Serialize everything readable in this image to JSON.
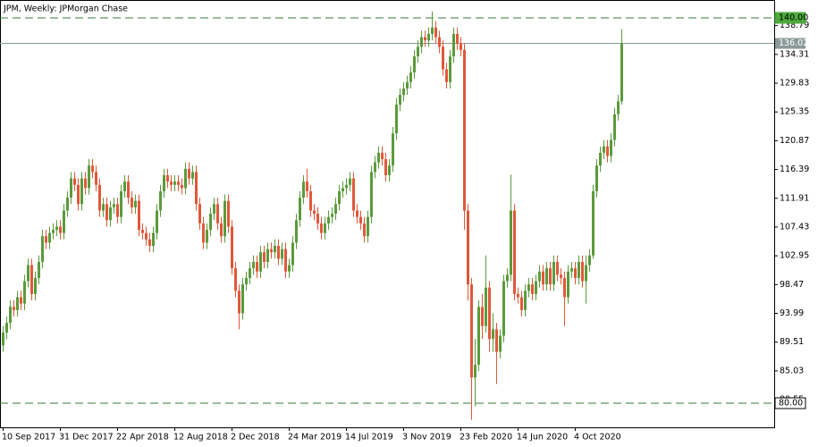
{
  "chart_data": {
    "type": "candlestick",
    "title": "JPM, Weekly:  JPMorgan Chase",
    "categories": [
      "10 Sep 2017",
      null,
      null,
      null,
      null,
      null,
      null,
      null,
      null,
      null,
      null,
      null,
      null,
      null,
      null,
      null,
      "31 Dec 2017",
      null,
      null,
      null,
      null,
      null,
      null,
      null,
      null,
      null,
      null,
      null,
      null,
      null,
      null,
      null,
      "22 Apr 2018",
      null,
      null,
      null,
      null,
      null,
      null,
      null,
      null,
      null,
      null,
      null,
      null,
      null,
      null,
      null,
      "12 Aug 2018",
      null,
      null,
      null,
      null,
      null,
      null,
      null,
      null,
      null,
      null,
      null,
      null,
      null,
      null,
      null,
      "2 Dec 2018",
      null,
      null,
      null,
      null,
      null,
      null,
      null,
      null,
      null,
      null,
      null,
      null,
      null,
      null,
      null,
      "24 Mar 2019",
      null,
      null,
      null,
      null,
      null,
      null,
      null,
      null,
      null,
      null,
      null,
      null,
      null,
      null,
      null,
      "14 Jul 2019",
      null,
      null,
      null,
      null,
      null,
      null,
      null,
      null,
      null,
      null,
      null,
      null,
      null,
      null,
      null,
      "3 Nov 2019",
      null,
      null,
      null,
      null,
      null,
      null,
      null,
      null,
      null,
      null,
      null,
      null,
      null,
      null,
      null,
      "23 Feb 2020",
      null,
      null,
      null,
      null,
      null,
      null,
      null,
      null,
      null,
      null,
      null,
      null,
      null,
      null,
      null,
      "14 Jun 2020",
      null,
      null,
      null,
      null,
      null,
      null,
      null,
      null,
      null,
      null,
      null,
      null,
      null,
      null,
      null,
      "4 Oct 2020",
      null,
      null,
      null,
      null,
      null,
      null,
      null,
      null,
      null,
      null,
      null,
      null,
      null
    ],
    "open": [
      89,
      91,
      92.5,
      95,
      94.5,
      96.5,
      95.5,
      99,
      101.5,
      97,
      99.5,
      102,
      106,
      105,
      106.5,
      107,
      107.5,
      106.5,
      110,
      112,
      115,
      114,
      111,
      115,
      113.5,
      117,
      116,
      114,
      110,
      111,
      108.5,
      110.5,
      111,
      109,
      113,
      114.5,
      112,
      110.5,
      111.5,
      107,
      106.5,
      105.5,
      104.5,
      106.5,
      110,
      113,
      115.5,
      114.5,
      114,
      114.5,
      114,
      113.5,
      116.5,
      115,
      116,
      111,
      108,
      105,
      107,
      109.5,
      111,
      108,
      106,
      111.5,
      107.5,
      101,
      97.5,
      94,
      98.5,
      99.5,
      101,
      102,
      100.5,
      103.5,
      102,
      104,
      103.5,
      104.5,
      102.5,
      104,
      100.5,
      101.5,
      105,
      108.5,
      112,
      114.5,
      113,
      110,
      109.5,
      108,
      106.5,
      108,
      109,
      109.5,
      111,
      113,
      113.5,
      114,
      115,
      110,
      109,
      108,
      106,
      109,
      116,
      117.5,
      119,
      118,
      115.5,
      117,
      122,
      126.5,
      128,
      129,
      130,
      131.5,
      134,
      135.5,
      137,
      136.5,
      137.5,
      138.5,
      137,
      135.5,
      132,
      130,
      134,
      137.5,
      136,
      135,
      110,
      98.5,
      84,
      86,
      95,
      92,
      98,
      90,
      91.5,
      88,
      90.5,
      99,
      100,
      110,
      97,
      96.5,
      94.5,
      97.5,
      98.5,
      97,
      99,
      100.5,
      98.5,
      101,
      98.5,
      102,
      100,
      99.5,
      96.5,
      100.5,
      101,
      99.5,
      102,
      99,
      101.5,
      103,
      113,
      117,
      119,
      120,
      118.5,
      121,
      125,
      127
    ],
    "high": [
      92,
      93.5,
      96,
      96,
      97.5,
      97.5,
      100,
      102.5,
      102.5,
      100.5,
      103,
      107,
      107,
      107.5,
      108,
      108.5,
      108.5,
      111,
      113,
      116,
      116,
      115,
      116,
      116,
      118,
      118,
      117,
      115,
      112,
      112,
      111.5,
      112,
      112,
      114,
      115.5,
      115.5,
      113,
      112.5,
      112.5,
      108,
      107.5,
      106.5,
      107.5,
      111,
      114,
      116.5,
      116.5,
      115.5,
      115.5,
      115.5,
      115,
      117.5,
      117.5,
      117,
      117,
      112,
      109,
      108,
      110.5,
      112,
      112,
      109,
      112.5,
      112.5,
      108.5,
      102,
      98.5,
      99.5,
      100.5,
      102,
      103,
      103,
      104.5,
      104.5,
      105,
      105,
      105.5,
      105.5,
      105,
      105,
      102.5,
      106,
      109.5,
      113,
      115.5,
      116.5,
      114,
      111,
      110.5,
      109,
      109,
      110,
      110.5,
      112,
      114,
      114.5,
      115,
      116,
      116,
      111,
      110,
      109,
      110,
      117,
      118.5,
      120,
      120,
      119,
      118,
      123,
      127.5,
      129,
      130,
      131,
      132.5,
      135,
      136.5,
      138,
      138,
      138.5,
      141,
      139.5,
      138,
      136.5,
      133,
      135,
      138.5,
      138.5,
      137,
      136,
      111,
      99.5,
      90,
      96,
      97,
      103,
      99,
      94,
      92.5,
      91.5,
      100,
      101,
      115.6,
      111,
      98,
      97.5,
      98.5,
      99.5,
      99.5,
      100,
      101.5,
      101.5,
      102,
      102,
      103,
      103,
      101,
      100.5,
      101.5,
      102,
      102,
      103,
      103,
      103,
      104,
      114,
      118,
      120,
      121,
      121,
      122,
      126,
      128,
      138.2
    ],
    "low": [
      88,
      90,
      91.5,
      93.5,
      93.5,
      94.5,
      94.5,
      98,
      96,
      96,
      98.5,
      101,
      104,
      104,
      105.5,
      106,
      105.5,
      105.5,
      109,
      111,
      113,
      110,
      110,
      112.5,
      112.5,
      115,
      113,
      109,
      109,
      107.5,
      107.5,
      109.5,
      108,
      108,
      112,
      111,
      109.5,
      109.5,
      106,
      105.5,
      104.5,
      103.5,
      103.5,
      105.5,
      109,
      112,
      113.5,
      113,
      113,
      113,
      112.5,
      112.5,
      114,
      114,
      110,
      107,
      104,
      104,
      106,
      108.5,
      107,
      105,
      105,
      106.5,
      100,
      96.5,
      91.5,
      93,
      97.5,
      98.5,
      100,
      99.5,
      99.5,
      101,
      101,
      102.5,
      102.5,
      101.5,
      101.5,
      99.5,
      99.5,
      100.5,
      104,
      107.5,
      111,
      112,
      109,
      108.5,
      107,
      105.5,
      105.5,
      107,
      108,
      108.5,
      110,
      112,
      112.5,
      113,
      109,
      108,
      107,
      105,
      105,
      108,
      115,
      116.5,
      117,
      114.5,
      114.5,
      116,
      121,
      125.5,
      127,
      128,
      129,
      130.5,
      133,
      134.5,
      135.5,
      135.5,
      136.5,
      136,
      134.5,
      131,
      129,
      129,
      133,
      135,
      134,
      107,
      96,
      77.4,
      79.5,
      85,
      90,
      91,
      88,
      88,
      83,
      87,
      89.5,
      98,
      99,
      96,
      95.5,
      93.5,
      93.5,
      96.5,
      96,
      96,
      98,
      97.5,
      97.5,
      97.5,
      97.5,
      99,
      98.5,
      92,
      95.5,
      99.5,
      98.5,
      98.5,
      98,
      95.5,
      100.5,
      102.5,
      112,
      116,
      118,
      117.5,
      117.5,
      120,
      124,
      126.5
    ],
    "close": [
      91,
      92.5,
      95,
      94.5,
      96.5,
      95.5,
      99,
      101.5,
      97,
      99.5,
      102,
      106,
      105,
      106.5,
      107,
      107.5,
      106.5,
      110,
      112,
      115,
      114,
      111,
      115,
      113.5,
      117,
      116,
      114,
      110,
      111,
      108.5,
      110.5,
      111,
      109,
      113,
      114.5,
      112,
      110.5,
      111.5,
      107,
      106.5,
      105.5,
      104.5,
      106.5,
      110,
      113,
      115.5,
      114.5,
      114,
      114.5,
      114,
      113.5,
      116.5,
      115,
      116,
      111,
      108,
      105,
      107,
      109.5,
      111,
      108,
      106,
      111.5,
      107.5,
      101,
      97.5,
      94,
      98.5,
      99.5,
      101,
      102,
      100.5,
      103.5,
      102,
      104,
      103.5,
      104.5,
      102.5,
      104,
      100.5,
      101.5,
      105,
      108.5,
      112,
      114.5,
      113,
      110,
      109.5,
      108,
      106.5,
      108,
      109,
      109.5,
      111,
      113,
      113.5,
      114,
      115,
      110,
      109,
      108,
      106,
      109,
      116,
      117.5,
      119,
      118,
      115.5,
      117,
      122,
      126.5,
      128,
      129,
      130,
      131.5,
      134,
      135.5,
      137,
      136.5,
      137.5,
      138.5,
      137,
      135.5,
      132,
      130,
      134,
      137.5,
      136,
      135,
      110,
      98.5,
      84,
      86,
      95,
      92,
      98,
      90,
      91.5,
      88,
      90.5,
      99,
      100,
      110,
      97,
      96.5,
      94.5,
      97.5,
      98.5,
      97,
      99,
      100.5,
      98.5,
      101,
      98.5,
      102,
      100,
      99.5,
      96.5,
      100.5,
      101,
      99.5,
      102,
      99,
      101.5,
      103,
      113,
      117,
      119,
      120,
      118.5,
      121,
      125,
      127,
      136.02
    ],
    "up_color": "#5b9a3c",
    "down_color": "#e0583a",
    "ylim": [
      76.24,
      142.78
    ],
    "yticks": [
      138.79,
      134.31,
      129.83,
      125.35,
      120.87,
      116.39,
      111.91,
      107.43,
      102.95,
      98.47,
      93.99,
      89.51,
      85.03,
      80.55
    ],
    "levels": [
      {
        "value": 140,
        "label": "140.00"
      },
      {
        "value": 80,
        "label": "80.00"
      }
    ],
    "current": {
      "value": 136.02,
      "label": "136.02"
    },
    "grid": false
  }
}
